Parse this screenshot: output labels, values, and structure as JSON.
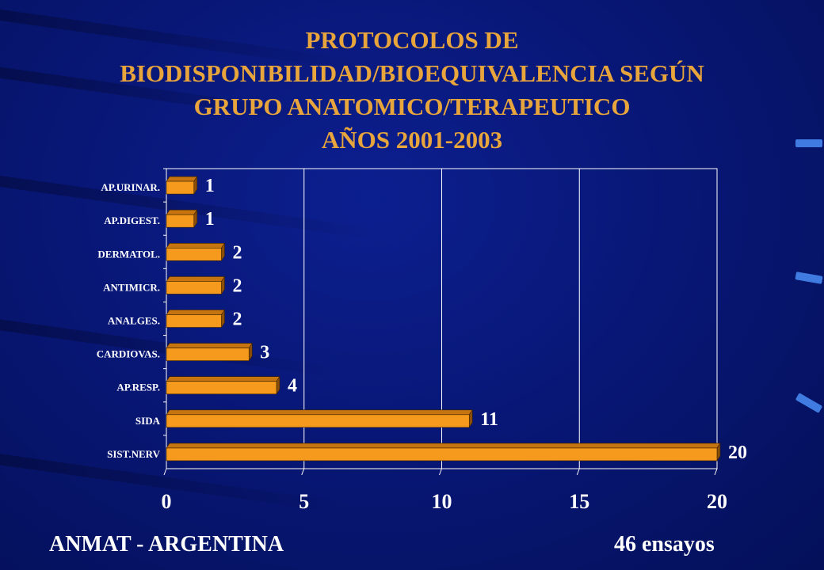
{
  "title_lines": [
    "PROTOCOLOS DE",
    "BIODISPONIBILIDAD/BIOEQUIVALENCIA  SEGÚN",
    "GRUPO ANATOMICO/TERAPEUTICO",
    "AÑOS 2001-2003"
  ],
  "footer": {
    "left": "ANMAT - ARGENTINA",
    "right": "46 ensayos"
  },
  "colors": {
    "bar": "#f59a1c",
    "bar_top": "#c67410",
    "bar_side": "#8c4f08",
    "title": "#e8a53c"
  },
  "chart_data": {
    "type": "bar",
    "orientation": "horizontal",
    "categories": [
      "AP.URINAR.",
      "AP.DIGEST.",
      "DERMATOL.",
      "ANTIMICR.",
      "ANALGES.",
      "CARDIOVAS.",
      "AP.RESP.",
      "SIDA",
      "SIST.NERV"
    ],
    "values": [
      1,
      1,
      2,
      2,
      2,
      3,
      4,
      11,
      20
    ],
    "xlim": [
      0,
      20
    ],
    "xticks": [
      "0",
      "5",
      "10",
      "15",
      "20"
    ],
    "grid": "vertical",
    "title": "PROTOCOLOS DE BIODISPONIBILIDAD/BIOEQUIVALENCIA  SEGÚN GRUPO ANATOMICO/TERAPEUTICO AÑOS 2001-2003"
  }
}
